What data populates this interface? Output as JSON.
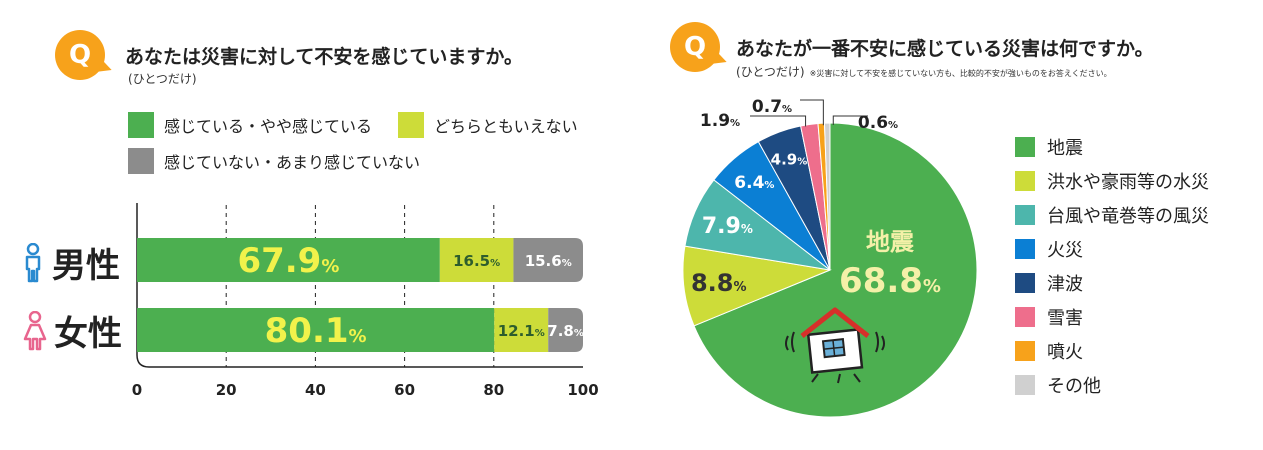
{
  "colors": {
    "accent": "#f7a21b",
    "green": "#4caf50",
    "lime": "#cddc39",
    "gray": "#8c8c8c",
    "teal": "#4db6ac",
    "blue": "#0b7fd4",
    "navy": "#1e4b82",
    "pink": "#ee6e8c",
    "orange": "#f7a21b",
    "light_gray": "#d0d0d0",
    "male": "#2a8ad0",
    "female": "#e8658e",
    "label_yellow": "#f2f24b"
  },
  "left": {
    "badge": "Q",
    "question": "あなたは災害に対して不安を感じていますか。",
    "sub": "(ひとつだけ)"
  },
  "right": {
    "badge": "Q",
    "question": "あなたが一番不安に感じている災害は何ですか。",
    "sub": "(ひとつだけ)",
    "note": "※災害に対して不安を感じていない方も、比較的不安が強いものをお答えください。"
  },
  "chart_data": [
    {
      "type": "bar",
      "orientation": "horizontal",
      "stacked": true,
      "categories": [
        "男性",
        "女性"
      ],
      "category_icons": [
        "male-icon",
        "female-icon"
      ],
      "series": [
        {
          "name": "感じている・やや感じている",
          "values": [
            67.9,
            80.1
          ],
          "labels": [
            "67.9",
            "80.1"
          ],
          "color": "#4caf50"
        },
        {
          "name": "どちらともいえない",
          "values": [
            16.5,
            12.1
          ],
          "labels": [
            "16.5",
            "12.1"
          ],
          "color": "#cddc39"
        },
        {
          "name": "感じていない・あまり感じていない",
          "values": [
            15.6,
            7.8
          ],
          "labels": [
            "15.6",
            "7.8"
          ],
          "color": "#8c8c8c"
        }
      ],
      "percent_sign": "%",
      "xlim": [
        0,
        100
      ],
      "xticks": [
        "0",
        "20",
        "40",
        "60",
        "80",
        "100"
      ],
      "grid": "dashed vertical at 20, 40, 60, 80",
      "legend_position": "top"
    },
    {
      "type": "pie",
      "title": "あなたが一番不安に感じている災害は何ですか。",
      "slices": [
        {
          "label": "地震",
          "value": 68.8,
          "value_label": "68.8",
          "color": "#4caf50"
        },
        {
          "label": "洪水や豪雨等の水災",
          "value": 8.8,
          "value_label": "8.8",
          "color": "#cddc39"
        },
        {
          "label": "台風や竜巻等の風災",
          "value": 7.9,
          "value_label": "7.9",
          "color": "#4db6ac"
        },
        {
          "label": "火災",
          "value": 6.4,
          "value_label": "6.4",
          "color": "#0b7fd4"
        },
        {
          "label": "津波",
          "value": 4.9,
          "value_label": "4.9",
          "color": "#1e4b82"
        },
        {
          "label": "雪害",
          "value": 1.9,
          "value_label": "1.9",
          "color": "#ee6e8c"
        },
        {
          "label": "噴火",
          "value": 0.7,
          "value_label": "0.7",
          "color": "#f7a21b"
        },
        {
          "label": "その他",
          "value": 0.6,
          "value_label": "0.6",
          "color": "#d0d0d0"
        }
      ],
      "center_label": "地震",
      "percent_sign": "%",
      "legend_position": "right"
    }
  ]
}
